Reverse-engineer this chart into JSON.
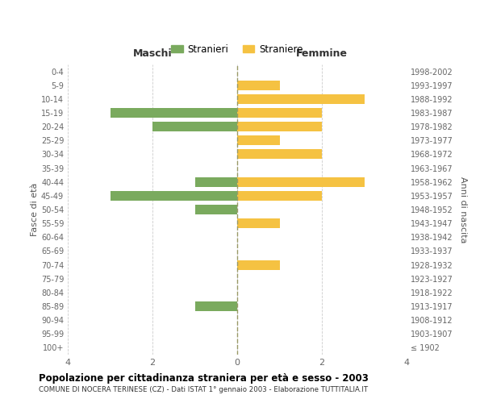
{
  "age_groups": [
    "100+",
    "95-99",
    "90-94",
    "85-89",
    "80-84",
    "75-79",
    "70-74",
    "65-69",
    "60-64",
    "55-59",
    "50-54",
    "45-49",
    "40-44",
    "35-39",
    "30-34",
    "25-29",
    "20-24",
    "15-19",
    "10-14",
    "5-9",
    "0-4"
  ],
  "birth_years": [
    "≤ 1902",
    "1903-1907",
    "1908-1912",
    "1913-1917",
    "1918-1922",
    "1923-1927",
    "1928-1932",
    "1933-1937",
    "1938-1942",
    "1943-1947",
    "1948-1952",
    "1953-1957",
    "1958-1962",
    "1963-1967",
    "1968-1972",
    "1973-1977",
    "1978-1982",
    "1983-1987",
    "1988-1992",
    "1993-1997",
    "1998-2002"
  ],
  "maschi": [
    0,
    0,
    0,
    1,
    0,
    0,
    0,
    0,
    0,
    0,
    1,
    3,
    1,
    0,
    0,
    0,
    2,
    3,
    0,
    0,
    0
  ],
  "femmine": [
    0,
    0,
    0,
    0,
    0,
    0,
    1,
    0,
    0,
    1,
    0,
    2,
    3,
    0,
    2,
    1,
    2,
    2,
    3,
    1,
    0
  ],
  "maschi_color": "#7aaa5e",
  "femmine_color": "#f5c242",
  "title": "Popolazione per cittadinanza straniera per età e sesso - 2003",
  "subtitle": "COMUNE DI NOCERA TERINESE (CZ) - Dati ISTAT 1° gennaio 2003 - Elaborazione TUTTITALIA.IT",
  "legend_maschi": "Stranieri",
  "legend_femmine": "Straniere",
  "xlabel_left": "Maschi",
  "xlabel_right": "Femmine",
  "ylabel_left": "Fasce di età",
  "ylabel_right": "Anni di nascita",
  "xlim": 4,
  "background_color": "#ffffff",
  "grid_color": "#cccccc",
  "bar_height": 0.7
}
